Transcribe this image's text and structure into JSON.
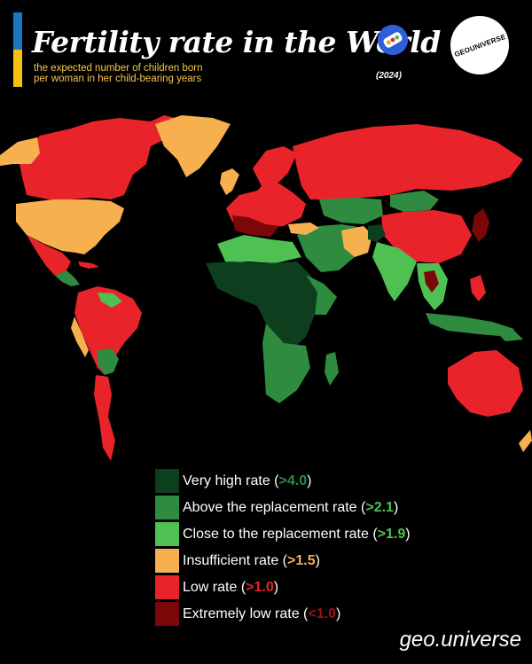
{
  "header": {
    "title": "Fertility rate in the World",
    "subtitle_line1": "the expected number of children born",
    "subtitle_line2": "per woman in her child-bearing years",
    "year": "(2024)",
    "logo_text": "GEOUNIVERSE"
  },
  "colors": {
    "very_high": "#0d3f1e",
    "above_replacement": "#2e8b3f",
    "close_replacement": "#4fc152",
    "insufficient": "#f7b04e",
    "low": "#e8242a",
    "extremely_low": "#7a0808",
    "flag_blue": "#1a78c2",
    "flag_yellow": "#f6c20f"
  },
  "legend": [
    {
      "label": "Very high rate",
      "value": ">4.0",
      "color": "#0d3f1e",
      "value_color": "#2e8b3f"
    },
    {
      "label": "Above the replacement rate",
      "value": ">2.1",
      "color": "#2e8b3f",
      "value_color": "#4fc152"
    },
    {
      "label": "Close to the replacement rate",
      "value": ">1.9",
      "color": "#4fc152",
      "value_color": "#4fc152"
    },
    {
      "label": "Insufficient rate",
      "value": ">1.5",
      "color": "#f7b04e",
      "value_color": "#f7b04e"
    },
    {
      "label": "Low rate",
      "value": ">1.0",
      "color": "#e8242a",
      "value_color": "#e8242a"
    },
    {
      "label": "Extremely low rate",
      "value": "<1.0",
      "color": "#7a0808",
      "value_color": "#a01010"
    }
  ],
  "footer": {
    "handle": "geo.universe"
  }
}
